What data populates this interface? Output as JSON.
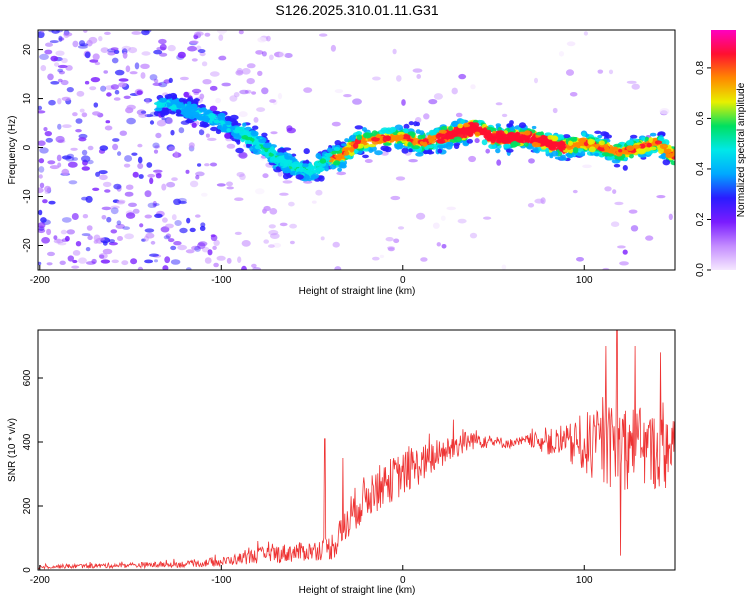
{
  "title": "S126.2025.310.01.11.G31",
  "chart_data": [
    {
      "type": "heatmap",
      "title": "S126.2025.310.01.11.G31",
      "xlabel": "Height of straight line (km)",
      "ylabel": "Frequency (Hz)",
      "xlim": [
        -201,
        150
      ],
      "ylim": [
        -25,
        24
      ],
      "x_ticks": [
        -200,
        -100,
        0,
        100
      ],
      "y_ticks": [
        -20,
        -10,
        0,
        10,
        20
      ],
      "ridge_x": [
        -130,
        -110,
        -95,
        -80,
        -70,
        -60,
        -50,
        -44,
        -40,
        -35,
        -25,
        -10,
        0,
        10,
        20,
        30,
        40,
        50,
        60,
        70,
        80,
        90,
        100,
        110,
        120,
        130,
        140,
        150
      ],
      "ridge_y": [
        9,
        7,
        4,
        1,
        -2,
        -4,
        -5,
        -3,
        -2,
        -2,
        1,
        2,
        2,
        1,
        2,
        3,
        4,
        2,
        2,
        2,
        1,
        0,
        1,
        0,
        -1,
        0,
        1,
        -2
      ],
      "colorbar": {
        "label": "Normalized spectral amplitude",
        "range": [
          0.0,
          0.95
        ],
        "ticks": [
          0.0,
          0.2,
          0.4,
          0.6,
          0.8
        ],
        "colors": [
          "#f5e8ff",
          "#c48cff",
          "#7a1cff",
          "#2a1cff",
          "#00a8ff",
          "#00e8e8",
          "#00e060",
          "#e8f000",
          "#ff8800",
          "#ff1030",
          "#ff00c0"
        ]
      }
    },
    {
      "type": "line",
      "xlabel": "Height of straight line (km)",
      "ylabel": "SNR (10 * v/v)",
      "xlim": [
        -201,
        150
      ],
      "ylim": [
        0,
        750
      ],
      "x_ticks": [
        -200,
        -100,
        0,
        100
      ],
      "y_ticks": [
        0,
        200,
        400,
        600
      ],
      "series": [
        {
          "name": "SNR",
          "color": "#ee3333",
          "x": [
            -201,
            -180,
            -160,
            -140,
            -120,
            -100,
            -90,
            -80,
            -70,
            -60,
            -50,
            -40,
            -35,
            -30,
            -25,
            -20,
            -10,
            0,
            10,
            20,
            30,
            40,
            50,
            60,
            70,
            80,
            90,
            100,
            110,
            120,
            130,
            140,
            150
          ],
          "mean": [
            10,
            12,
            14,
            16,
            18,
            25,
            35,
            45,
            50,
            55,
            60,
            70,
            100,
            160,
            200,
            230,
            270,
            300,
            330,
            360,
            390,
            410,
            400,
            395,
            405,
            400,
            390,
            395,
            380,
            390,
            380,
            370,
            360
          ],
          "noise": [
            6,
            7,
            8,
            9,
            10,
            14,
            18,
            25,
            30,
            30,
            30,
            40,
            60,
            70,
            70,
            70,
            70,
            70,
            60,
            50,
            40,
            30,
            20,
            15,
            20,
            40,
            60,
            100,
            120,
            140,
            130,
            120,
            110
          ],
          "spikes": [
            [
              -43,
              410
            ],
            [
              -33,
              350
            ],
            [
              8,
              360
            ],
            [
              28,
              470
            ],
            [
              33,
              440
            ],
            [
              112,
              700
            ],
            [
              118,
              760
            ],
            [
              120,
              45
            ],
            [
              128,
              700
            ],
            [
              142,
              680
            ]
          ]
        }
      ]
    }
  ]
}
